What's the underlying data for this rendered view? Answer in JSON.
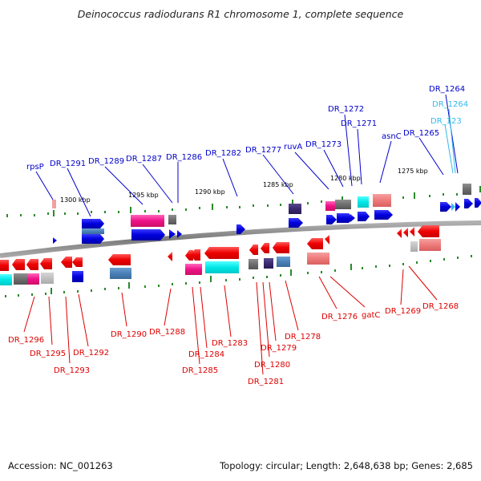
{
  "title": "Deinococcus radiodurans R1 chromosome 1, complete sequence",
  "footer": {
    "accession": "Accession: NC_001263",
    "summary": "Topology: circular; Length: 2,648,638 bp; Genes: 2,685"
  },
  "scale_labels": [
    "1300 kbp",
    "1295 kbp",
    "1290 kbp",
    "1285 kbp",
    "1280 kbp",
    "1275 kbp"
  ],
  "colors": {
    "forward_label": "#0000cc",
    "forward_label_alt": "#33bbee",
    "reverse_label": "#dd0000",
    "backbone": "#8c8c8c",
    "tick": "#2a8a2a"
  },
  "forward_genes": [
    "rpsP",
    "DR_1291",
    "DR_1289",
    "DR_1287",
    "DR_1286",
    "DR_1282",
    "DR_1277",
    "ruvA",
    "DR_1273",
    "DR_1272",
    "DR_1271",
    "asnC",
    "DR_1265",
    "DR_1264",
    "DR_1264",
    "DR_123"
  ],
  "reverse_genes": [
    "DR_1296",
    "DR_1295",
    "DR_1293",
    "DR_1292",
    "DR_1290",
    "DR_1288",
    "DR_1285",
    "DR_1284",
    "DR_1283",
    "DR_1281",
    "DR_1280",
    "DR_1279",
    "DR_1278",
    "DR_1276",
    "gatC",
    "DR_1269",
    "DR_1268"
  ]
}
